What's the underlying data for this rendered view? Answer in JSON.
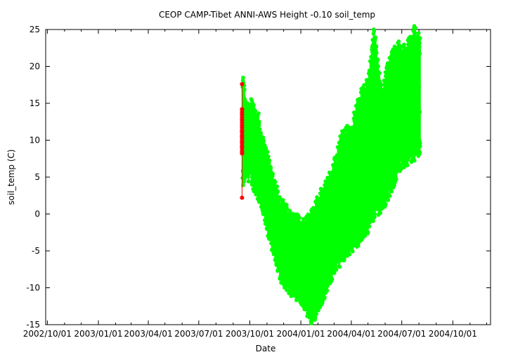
{
  "chart_data": {
    "type": "scatter",
    "title": "CEOP CAMP-Tibet ANNI-AWS Height -0.10 soil_temp",
    "xlabel": "Date",
    "ylabel": "soil_temp (C)",
    "xlim": [
      "2002-09-28",
      "2004-12-08"
    ],
    "ylim": [
      -15,
      25
    ],
    "x_ticks": [
      {
        "value": "2002-10-01",
        "label": "2002/10/01"
      },
      {
        "value": "2003-01-01",
        "label": "2003/01/01"
      },
      {
        "value": "2003-04-01",
        "label": "2003/04/01"
      },
      {
        "value": "2003-07-01",
        "label": "2003/07/01"
      },
      {
        "value": "2003-10-01",
        "label": "2003/10/01"
      },
      {
        "value": "2004-01-01",
        "label": "2004/01/01"
      },
      {
        "value": "2004-04-01",
        "label": "2004/04/01"
      },
      {
        "value": "2004-07-01",
        "label": "2004/07/01"
      },
      {
        "value": "2004-10-01",
        "label": "2004/10/01"
      }
    ],
    "y_ticks": [
      -15,
      -10,
      -5,
      0,
      5,
      10,
      15,
      20,
      25
    ],
    "grid": false,
    "legend": "none",
    "colors": {
      "main": "#00ff00",
      "flagged": "#ff0000"
    },
    "series": [
      {
        "kind": "diurnal-band",
        "color": "#00ff00",
        "points": [
          {
            "date": "2003-09-18",
            "min": 4.5,
            "max": 17.8
          },
          {
            "date": "2003-09-25",
            "min": 6.0,
            "max": 14.5
          },
          {
            "date": "2003-10-05",
            "min": 5.0,
            "max": 14.0
          },
          {
            "date": "2003-10-15",
            "min": 3.0,
            "max": 13.0
          },
          {
            "date": "2003-10-25",
            "min": 0.5,
            "max": 9.0
          },
          {
            "date": "2003-11-05",
            "min": -2.5,
            "max": 6.5
          },
          {
            "date": "2003-11-15",
            "min": -5.0,
            "max": 3.5
          },
          {
            "date": "2003-11-25",
            "min": -8.0,
            "max": 1.0
          },
          {
            "date": "2003-12-05",
            "min": -9.0,
            "max": 0.0
          },
          {
            "date": "2003-12-15",
            "min": -10.0,
            "max": -1.0
          },
          {
            "date": "2003-12-25",
            "min": -10.5,
            "max": -1.5
          },
          {
            "date": "2004-01-05",
            "min": -11.5,
            "max": -2.0
          },
          {
            "date": "2004-01-15",
            "min": -13.0,
            "max": -1.0
          },
          {
            "date": "2004-01-22",
            "min": -14.0,
            "max": -0.5
          },
          {
            "date": "2004-02-01",
            "min": -12.0,
            "max": 1.5
          },
          {
            "date": "2004-02-15",
            "min": -10.0,
            "max": 3.0
          },
          {
            "date": "2004-03-01",
            "min": -7.0,
            "max": 6.0
          },
          {
            "date": "2004-03-15",
            "min": -5.5,
            "max": 10.0
          },
          {
            "date": "2004-04-01",
            "min": -4.0,
            "max": 11.0
          },
          {
            "date": "2004-04-15",
            "min": -3.0,
            "max": 15.0
          },
          {
            "date": "2004-05-01",
            "min": -1.5,
            "max": 17.0
          },
          {
            "date": "2004-05-12",
            "min": 0.5,
            "max": 24.0
          },
          {
            "date": "2004-05-25",
            "min": 1.5,
            "max": 16.0
          },
          {
            "date": "2004-06-05",
            "min": 2.5,
            "max": 19.0
          },
          {
            "date": "2004-06-15",
            "min": 4.5,
            "max": 21.0
          },
          {
            "date": "2004-06-25",
            "min": 6.5,
            "max": 22.0
          },
          {
            "date": "2004-07-05",
            "min": 7.5,
            "max": 21.5
          },
          {
            "date": "2004-07-15",
            "min": 8.0,
            "max": 22.5
          },
          {
            "date": "2004-07-25",
            "min": 8.5,
            "max": 24.5
          },
          {
            "date": "2004-08-03",
            "min": 9.0,
            "max": 22.5
          }
        ]
      },
      {
        "kind": "points",
        "color": "#ff0000",
        "points": [
          {
            "date": "2003-09-17",
            "value": 17.6
          },
          {
            "date": "2003-09-17",
            "value": 14.2
          },
          {
            "date": "2003-09-17",
            "value": 13.5
          },
          {
            "date": "2003-09-17",
            "value": 12.8
          },
          {
            "date": "2003-09-17",
            "value": 12.0
          },
          {
            "date": "2003-09-17",
            "value": 11.2
          },
          {
            "date": "2003-09-17",
            "value": 10.5
          },
          {
            "date": "2003-09-17",
            "value": 9.8
          },
          {
            "date": "2003-09-17",
            "value": 9.0
          },
          {
            "date": "2003-09-17",
            "value": 8.3
          },
          {
            "date": "2003-09-17",
            "value": 2.2
          }
        ]
      }
    ]
  }
}
